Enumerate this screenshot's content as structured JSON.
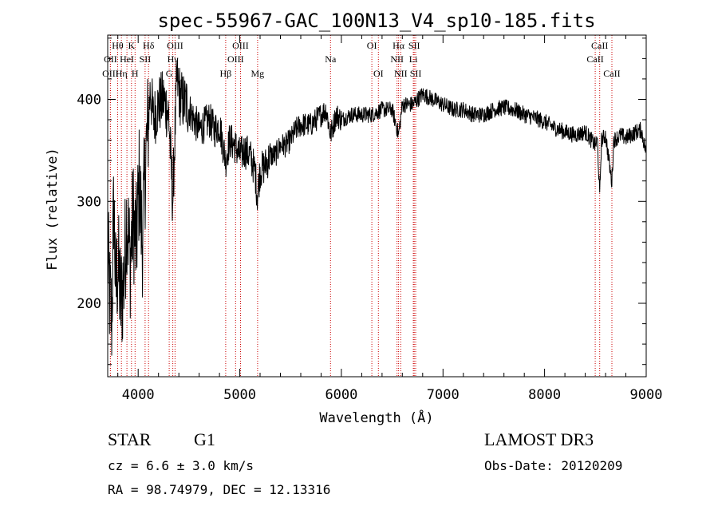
{
  "chart_data": {
    "type": "line",
    "title": "spec-55967-GAC_100N13_V4_sp10-185.fits",
    "xlabel": "Wavelength (Å)",
    "ylabel": "Flux (relative)",
    "xlim": [
      3700,
      9000
    ],
    "ylim": [
      128,
      463
    ],
    "x_ticks": [
      4000,
      5000,
      6000,
      7000,
      8000,
      9000
    ],
    "y_ticks": [
      200,
      300,
      400
    ],
    "line_color": "#000000",
    "marker_color": "#cc0000",
    "anchors": [
      [
        3700,
        250
      ],
      [
        3720,
        205
      ],
      [
        3740,
        185
      ],
      [
        3760,
        300
      ],
      [
        3780,
        210
      ],
      [
        3800,
        240
      ],
      [
        3830,
        200
      ],
      [
        3860,
        225
      ],
      [
        3890,
        290
      ],
      [
        3920,
        240
      ],
      [
        3950,
        285
      ],
      [
        3980,
        255
      ],
      [
        4010,
        320
      ],
      [
        4040,
        260
      ],
      [
        4070,
        335
      ],
      [
        4100,
        380
      ],
      [
        4120,
        410
      ],
      [
        4150,
        380
      ],
      [
        4200,
        395
      ],
      [
        4250,
        400
      ],
      [
        4300,
        385
      ],
      [
        4340,
        300
      ],
      [
        4380,
        420
      ],
      [
        4420,
        400
      ],
      [
        4480,
        395
      ],
      [
        4550,
        380
      ],
      [
        4600,
        370
      ],
      [
        4650,
        375
      ],
      [
        4700,
        380
      ],
      [
        4750,
        370
      ],
      [
        4800,
        375
      ],
      [
        4861,
        340
      ],
      [
        4900,
        360
      ],
      [
        4950,
        355
      ],
      [
        5000,
        345
      ],
      [
        5050,
        350
      ],
      [
        5100,
        345
      ],
      [
        5150,
        330
      ],
      [
        5172,
        305
      ],
      [
        5200,
        330
      ],
      [
        5250,
        335
      ],
      [
        5300,
        345
      ],
      [
        5350,
        345
      ],
      [
        5400,
        355
      ],
      [
        5450,
        355
      ],
      [
        5500,
        360
      ],
      [
        5550,
        370
      ],
      [
        5600,
        375
      ],
      [
        5650,
        375
      ],
      [
        5700,
        375
      ],
      [
        5750,
        380
      ],
      [
        5800,
        385
      ],
      [
        5850,
        390
      ],
      [
        5893,
        365
      ],
      [
        5950,
        385
      ],
      [
        6000,
        380
      ],
      [
        6100,
        385
      ],
      [
        6200,
        385
      ],
      [
        6300,
        385
      ],
      [
        6400,
        390
      ],
      [
        6500,
        390
      ],
      [
        6563,
        365
      ],
      [
        6600,
        395
      ],
      [
        6700,
        395
      ],
      [
        6800,
        405
      ],
      [
        6900,
        400
      ],
      [
        7000,
        395
      ],
      [
        7100,
        390
      ],
      [
        7200,
        390
      ],
      [
        7300,
        385
      ],
      [
        7400,
        385
      ],
      [
        7500,
        390
      ],
      [
        7600,
        392
      ],
      [
        7700,
        390
      ],
      [
        7800,
        385
      ],
      [
        7900,
        382
      ],
      [
        8000,
        378
      ],
      [
        8100,
        372
      ],
      [
        8200,
        368
      ],
      [
        8300,
        365
      ],
      [
        8400,
        368
      ],
      [
        8498,
        355
      ],
      [
        8520,
        360
      ],
      [
        8542,
        305
      ],
      [
        8560,
        360
      ],
      [
        8600,
        365
      ],
      [
        8662,
        318
      ],
      [
        8680,
        360
      ],
      [
        8750,
        365
      ],
      [
        8800,
        362
      ],
      [
        8900,
        368
      ],
      [
        8950,
        370
      ],
      [
        9000,
        348
      ]
    ],
    "spike_lines": [
      {
        "label": "Hθ",
        "wavelength": 3798,
        "row": 1
      },
      {
        "label": "OII",
        "wavelength": 3727,
        "row": 2
      },
      {
        "label": "OIII",
        "wavelength": 3727,
        "row": 3
      },
      {
        "label": "K",
        "wavelength": 3934,
        "row": 1
      },
      {
        "label": "HeI",
        "wavelength": 3889,
        "row": 2
      },
      {
        "label": "Hη",
        "wavelength": 3835,
        "row": 3
      },
      {
        "label": "SII",
        "wavelength": 4068,
        "row": 2
      },
      {
        "label": "H",
        "wavelength": 3969,
        "row": 3
      },
      {
        "label": "Hδ",
        "wavelength": 4102,
        "row": 1
      },
      {
        "label": "OIII",
        "wavelength": 4363,
        "row": 1
      },
      {
        "label": "Hγ",
        "wavelength": 4341,
        "row": 2
      },
      {
        "label": "G",
        "wavelength": 4305,
        "row": 3
      },
      {
        "label": "Hβ",
        "wavelength": 4861,
        "row": 3
      },
      {
        "label": "OIII",
        "wavelength": 5007,
        "row": 1
      },
      {
        "label": "OIII",
        "wavelength": 4959,
        "row": 2
      },
      {
        "label": "Mg",
        "wavelength": 5175,
        "row": 3
      },
      {
        "label": "Na",
        "wavelength": 5893,
        "row": 2
      },
      {
        "label": "OI",
        "wavelength": 6300,
        "row": 1
      },
      {
        "label": "OI",
        "wavelength": 6364,
        "row": 3
      },
      {
        "label": "Hα",
        "wavelength": 6563,
        "row": 1
      },
      {
        "label": "SII",
        "wavelength": 6717,
        "row": 1
      },
      {
        "label": "NII",
        "wavelength": 6548,
        "row": 2
      },
      {
        "label": "Li",
        "wavelength": 6708,
        "row": 2
      },
      {
        "label": "NII",
        "wavelength": 6584,
        "row": 3
      },
      {
        "label": "SII",
        "wavelength": 6731,
        "row": 3
      },
      {
        "label": "CaII",
        "wavelength": 8542,
        "row": 1
      },
      {
        "label": "CaII",
        "wavelength": 8498,
        "row": 2
      },
      {
        "label": "CaII",
        "wavelength": 8662,
        "row": 3
      }
    ]
  },
  "info": {
    "class_label": "STAR",
    "subclass": "G1",
    "survey": "LAMOST DR3",
    "cz": "cz = 6.6 ± 3.0 km/s",
    "obs_date": "Obs-Date: 20120209",
    "radec": "RA =  98.74979, DEC =  12.13316"
  }
}
